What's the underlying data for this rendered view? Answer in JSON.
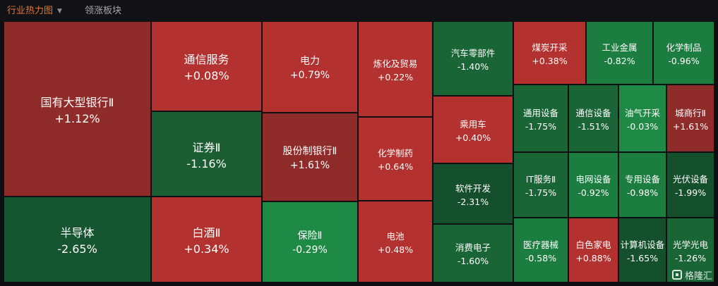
{
  "tabs": {
    "active_label": "行业热力图",
    "inactive_label": "领涨板块"
  },
  "colors": {
    "up": "#b3312f",
    "up_dark": "#8f2c2a",
    "down": "#1a7a3f",
    "down_dark": "#155530"
  },
  "cells": [
    {
      "name": "国有大型银行Ⅱ",
      "change": "+1.12%"
    },
    {
      "name": "半导体",
      "change": "-2.65%"
    },
    {
      "name": "通信服务",
      "change": "+0.08%"
    },
    {
      "name": "证券Ⅱ",
      "change": "-1.16%"
    },
    {
      "name": "白酒Ⅱ",
      "change": "+0.34%"
    },
    {
      "name": "电力",
      "change": "+0.79%"
    },
    {
      "name": "股份制银行Ⅱ",
      "change": "+1.61%"
    },
    {
      "name": "保险Ⅱ",
      "change": "-0.29%"
    },
    {
      "name": "炼化及贸易",
      "change": "+0.22%"
    },
    {
      "name": "化学制药",
      "change": "+0.64%"
    },
    {
      "name": "电池",
      "change": "+0.48%"
    },
    {
      "name": "汽车零部件",
      "change": "-1.40%"
    },
    {
      "name": "乘用车",
      "change": "+0.40%"
    },
    {
      "name": "软件开发",
      "change": "-2.31%"
    },
    {
      "name": "消费电子",
      "change": "-1.60%"
    },
    {
      "name": "煤炭开采",
      "change": "+0.38%"
    },
    {
      "name": "工业金属",
      "change": "-0.82%"
    },
    {
      "name": "化学制品",
      "change": "-0.96%"
    },
    {
      "name": "通用设备",
      "change": "-1.75%"
    },
    {
      "name": "通信设备",
      "change": "-1.51%"
    },
    {
      "name": "油气开采",
      "change": "-0.03%"
    },
    {
      "name": "城商行Ⅱ",
      "change": "+1.61%"
    },
    {
      "name": "IT服务Ⅱ",
      "change": "-1.75%"
    },
    {
      "name": "电网设备",
      "change": "-0.92%"
    },
    {
      "name": "专用设备",
      "change": "-0.98%"
    },
    {
      "name": "光伏设备",
      "change": "-1.99%"
    },
    {
      "name": "医疗器械",
      "change": "-0.58%"
    },
    {
      "name": "白色家电",
      "change": "+0.88%"
    },
    {
      "name": "计算机设备",
      "change": "-1.65%"
    },
    {
      "name": "光学光电",
      "change": "-1.26%"
    }
  ],
  "watermark": "格隆汇"
}
